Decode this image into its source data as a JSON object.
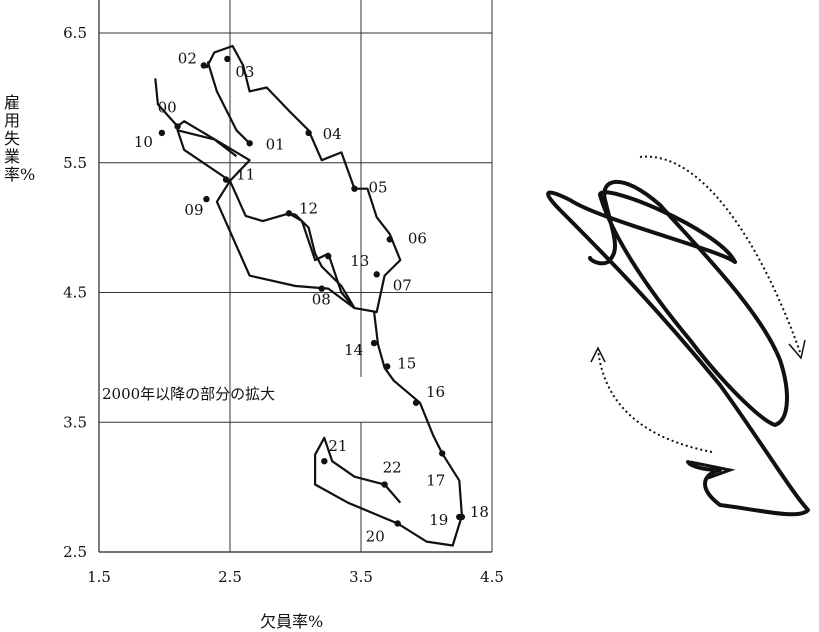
{
  "chart_data": [
    {
      "type": "line",
      "xlabel": "欠員率%",
      "ylabel": "雇用失業率%",
      "xlim": [
        1.5,
        4.5
      ],
      "ylim": [
        2.5,
        6.5
      ],
      "x_ticks": [
        "1.5",
        "2.5",
        "3.5",
        "4.5"
      ],
      "y_ticks": [
        "2.5",
        "3.5",
        "4.5",
        "5.5",
        "6.5"
      ],
      "grid": true,
      "annotation": "2000年以降の部分の拡大",
      "path": [
        [
          1.93,
          6.15
        ],
        [
          1.95,
          5.95
        ],
        [
          2.1,
          5.78
        ],
        [
          2.15,
          5.82
        ],
        [
          2.4,
          5.67
        ],
        [
          2.65,
          5.52
        ],
        [
          2.5,
          5.36
        ],
        [
          2.62,
          5.09
        ],
        [
          2.75,
          5.05
        ],
        [
          2.95,
          5.11
        ],
        [
          3.05,
          5.05
        ],
        [
          3.15,
          4.75
        ],
        [
          3.25,
          4.8
        ],
        [
          3.35,
          4.5
        ],
        [
          3.45,
          4.38
        ],
        [
          3.62,
          4.35
        ],
        [
          3.6,
          4.35
        ],
        [
          3.63,
          4.1
        ],
        [
          3.68,
          3.92
        ],
        [
          3.75,
          3.82
        ],
        [
          3.95,
          3.65
        ],
        [
          4.05,
          3.4
        ],
        [
          4.12,
          3.26
        ],
        [
          4.25,
          3.05
        ],
        [
          4.27,
          2.78
        ],
        [
          4.2,
          2.55
        ],
        [
          4.0,
          2.58
        ],
        [
          3.78,
          2.72
        ],
        [
          3.4,
          2.88
        ],
        [
          3.15,
          3.02
        ],
        [
          3.15,
          3.25
        ],
        [
          3.22,
          3.38
        ],
        [
          3.28,
          3.2
        ],
        [
          3.45,
          3.08
        ],
        [
          3.68,
          3.02
        ],
        [
          3.8,
          2.88
        ]
      ],
      "path2": [
        [
          2.55,
          5.55
        ],
        [
          2.38,
          5.68
        ],
        [
          2.1,
          5.75
        ],
        [
          2.15,
          5.6
        ],
        [
          2.5,
          5.36
        ],
        [
          2.4,
          5.2
        ],
        [
          2.65,
          4.63
        ],
        [
          3.0,
          4.55
        ],
        [
          3.25,
          4.53
        ],
        [
          3.45,
          4.38
        ],
        [
          3.35,
          4.55
        ],
        [
          3.2,
          4.7
        ],
        [
          3.15,
          4.8
        ],
        [
          3.1,
          5.0
        ],
        [
          3.0,
          5.1
        ],
        [
          2.95,
          5.11
        ]
      ],
      "path3": [
        [
          2.32,
          6.23
        ],
        [
          2.38,
          6.35
        ],
        [
          2.52,
          6.4
        ],
        [
          2.6,
          6.25
        ],
        [
          2.65,
          6.05
        ],
        [
          2.78,
          6.08
        ],
        [
          2.95,
          5.9
        ],
        [
          3.1,
          5.75
        ],
        [
          3.2,
          5.52
        ],
        [
          3.35,
          5.58
        ],
        [
          3.45,
          5.3
        ],
        [
          3.55,
          5.3
        ],
        [
          3.62,
          5.08
        ],
        [
          3.72,
          4.95
        ],
        [
          3.8,
          4.75
        ],
        [
          3.68,
          4.63
        ],
        [
          3.62,
          4.35
        ]
      ],
      "path4": [
        [
          2.33,
          6.28
        ],
        [
          2.4,
          6.05
        ],
        [
          2.55,
          5.75
        ],
        [
          2.65,
          5.65
        ]
      ],
      "points": [
        {
          "label": "00",
          "x": 2.1,
          "y": 5.78
        },
        {
          "label": "01",
          "x": 2.65,
          "y": 5.65
        },
        {
          "label": "02",
          "x": 2.3,
          "y": 6.25
        },
        {
          "label": "03",
          "x": 2.48,
          "y": 6.3
        },
        {
          "label": "04",
          "x": 3.1,
          "y": 5.73
        },
        {
          "label": "05",
          "x": 3.45,
          "y": 5.3
        },
        {
          "label": "06",
          "x": 3.72,
          "y": 4.91
        },
        {
          "label": "07",
          "x": 3.62,
          "y": 4.64
        },
        {
          "label": "08",
          "x": 3.2,
          "y": 4.53
        },
        {
          "label": "09",
          "x": 2.32,
          "y": 5.22
        },
        {
          "label": "10",
          "x": 1.98,
          "y": 5.73
        },
        {
          "label": "11",
          "x": 2.47,
          "y": 5.37
        },
        {
          "label": "12",
          "x": 2.95,
          "y": 5.11
        },
        {
          "label": "13",
          "x": 3.25,
          "y": 4.78
        },
        {
          "label": "14",
          "x": 3.6,
          "y": 4.11
        },
        {
          "label": "15",
          "x": 3.7,
          "y": 3.93
        },
        {
          "label": "16",
          "x": 3.92,
          "y": 3.65
        },
        {
          "label": "17",
          "x": 4.12,
          "y": 3.26
        },
        {
          "label": "18",
          "x": 4.27,
          "y": 2.77
        },
        {
          "label": "19",
          "x": 4.25,
          "y": 2.77
        },
        {
          "label": "20",
          "x": 3.78,
          "y": 2.72
        },
        {
          "label": "21",
          "x": 3.22,
          "y": 3.2
        },
        {
          "label": "22",
          "x": 3.68,
          "y": 3.02
        }
      ]
    },
    {
      "type": "line",
      "note": "schematic loop diagram",
      "title": ""
    }
  ]
}
